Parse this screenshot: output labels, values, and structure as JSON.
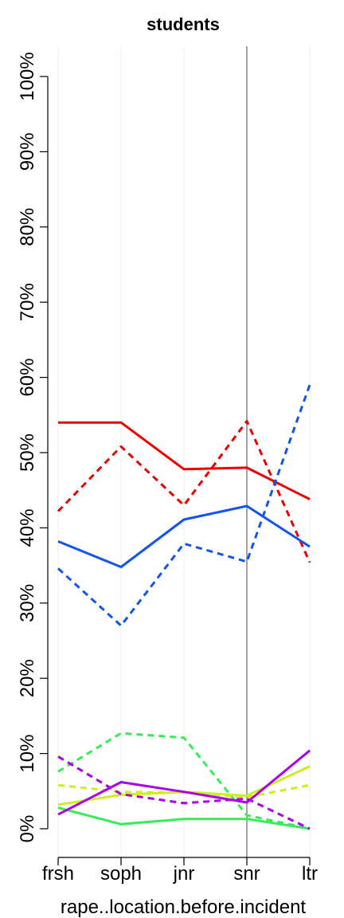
{
  "chart_data": {
    "type": "line",
    "title": "students",
    "xlabel": "rape..location.before.incident",
    "ylabel": "",
    "categories": [
      "frsh",
      "soph",
      "jnr",
      "snr",
      "ltr"
    ],
    "y_ticks": [
      "0%",
      "10%",
      "20%",
      "30%",
      "40%",
      "50%",
      "60%",
      "70%",
      "80%",
      "90%",
      "100%"
    ],
    "ylim": [
      0,
      100
    ],
    "reference_line_category": "snr",
    "grid": "vertical lines at categories",
    "series": [
      {
        "color": "#ee0000",
        "dash": "solid",
        "values": [
          54.0,
          54.0,
          47.8,
          48.0,
          43.8
        ]
      },
      {
        "color": "#ee0000",
        "dash": "dashed",
        "values": [
          42.2,
          50.8,
          43.0,
          54.2,
          35.4
        ]
      },
      {
        "color": "#1155ee",
        "dash": "solid",
        "values": [
          38.2,
          34.8,
          41.1,
          42.9,
          37.5
        ]
      },
      {
        "color": "#1155ee",
        "dash": "dashed",
        "values": [
          34.6,
          27.0,
          37.9,
          35.5,
          59.0
        ]
      },
      {
        "color": "#33ee55",
        "dash": "solid",
        "values": [
          2.8,
          0.6,
          1.3,
          1.3,
          0.0
        ]
      },
      {
        "color": "#33ee55",
        "dash": "dashed",
        "values": [
          7.6,
          12.7,
          12.1,
          1.8,
          0.0
        ]
      },
      {
        "color": "#ccee22",
        "dash": "solid",
        "values": [
          3.2,
          4.5,
          4.9,
          4.4,
          8.3
        ]
      },
      {
        "color": "#ccee22",
        "dash": "dashed",
        "values": [
          5.8,
          4.9,
          4.8,
          4.2,
          5.8
        ]
      },
      {
        "color": "#aa00ee",
        "dash": "solid",
        "values": [
          1.9,
          6.2,
          4.9,
          3.5,
          10.4
        ]
      },
      {
        "color": "#aa00ee",
        "dash": "dashed",
        "values": [
          9.6,
          4.6,
          3.4,
          4.0,
          0.0
        ]
      }
    ]
  }
}
